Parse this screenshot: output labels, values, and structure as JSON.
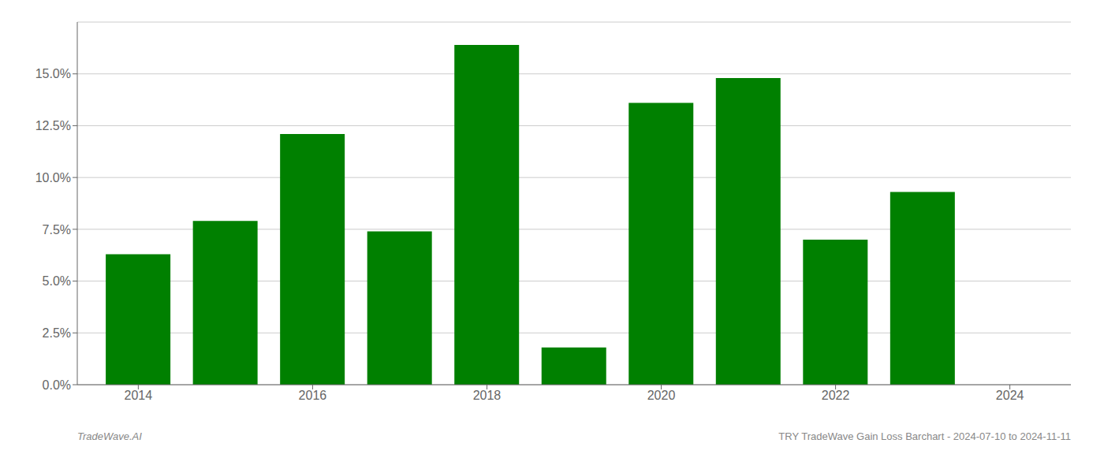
{
  "chart_data": {
    "type": "bar",
    "x": [
      2014,
      2015,
      2016,
      2017,
      2018,
      2019,
      2020,
      2021,
      2022,
      2023
    ],
    "values": [
      0.063,
      0.079,
      0.121,
      0.074,
      0.164,
      0.018,
      0.136,
      0.148,
      0.07,
      0.093
    ],
    "color": "#008000",
    "xlim": [
      2013.3,
      2024.7
    ],
    "xticks": [
      2014,
      2016,
      2018,
      2020,
      2022,
      2024
    ],
    "ylim": [
      0,
      0.175
    ],
    "yticks": [
      {
        "value": 0.0,
        "label": "0.0%"
      },
      {
        "value": 0.025,
        "label": "2.5%"
      },
      {
        "value": 0.05,
        "label": "5.0%"
      },
      {
        "value": 0.075,
        "label": "7.5%"
      },
      {
        "value": 0.1,
        "label": "10.0%"
      },
      {
        "value": 0.125,
        "label": "12.5%"
      },
      {
        "value": 0.15,
        "label": "15.0%"
      }
    ],
    "grid": true,
    "annotations": [
      "TradeWave.AI",
      "TRY TradeWave Gain Loss Barchart - 2024-07-10 to 2024-11-11"
    ]
  }
}
